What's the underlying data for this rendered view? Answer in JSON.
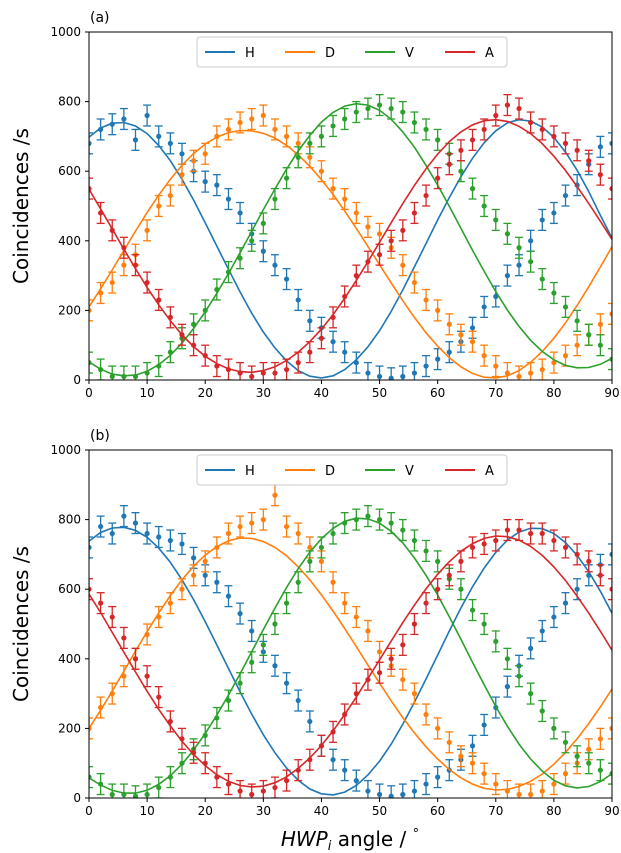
{
  "figure": {
    "xlabel_main": "HWP",
    "xlabel_sub": "i",
    "xlabel_rest": " angle / ",
    "xlabel_deg": "°"
  },
  "colors": {
    "H": "#1f77b4",
    "D": "#ff7f0e",
    "V": "#2ca02c",
    "A": "#d62728"
  },
  "chart_data": [
    {
      "type": "scatter",
      "panel_label": "(a)",
      "ylabel": "Coincidences /s",
      "xlim": [
        0,
        90
      ],
      "ylim": [
        0,
        1000
      ],
      "xticks": [
        0,
        10,
        20,
        30,
        40,
        50,
        60,
        70,
        80,
        90
      ],
      "yticks": [
        0,
        200,
        400,
        600,
        800,
        1000
      ],
      "legend_position": "top-center",
      "x": [
        0,
        2,
        4,
        6,
        8,
        10,
        12,
        14,
        16,
        18,
        20,
        22,
        24,
        26,
        28,
        30,
        32,
        34,
        36,
        38,
        40,
        42,
        44,
        46,
        48,
        50,
        52,
        54,
        56,
        58,
        60,
        62,
        64,
        66,
        68,
        70,
        72,
        74,
        76,
        78,
        80,
        82,
        84,
        86,
        88,
        90
      ],
      "series": [
        {
          "name": "H",
          "color": "#1f77b4",
          "y_err": 30,
          "y": [
            680,
            720,
            735,
            750,
            690,
            760,
            700,
            680,
            650,
            600,
            570,
            560,
            520,
            480,
            420,
            370,
            330,
            290,
            230,
            170,
            150,
            110,
            80,
            50,
            20,
            10,
            5,
            10,
            20,
            40,
            60,
            80,
            110,
            150,
            210,
            240,
            300,
            330,
            400,
            460,
            480,
            530,
            560,
            620,
            670,
            680
          ],
          "fit": [
            698,
            724,
            738,
            740,
            730,
            708,
            674,
            630,
            577,
            517,
            452,
            385,
            318,
            253,
            192,
            138,
            92,
            55,
            27,
            11,
            6,
            12,
            30,
            58,
            95,
            142,
            197,
            259,
            325,
            392,
            460,
            524,
            584,
            637,
            682,
            716,
            739,
            748,
            744,
            727,
            697,
            655,
            603,
            541,
            473,
            408
          ]
        },
        {
          "name": "D",
          "color": "#ff7f0e",
          "y_err": 30,
          "y": [
            200,
            250,
            280,
            330,
            360,
            430,
            500,
            530,
            590,
            630,
            650,
            700,
            720,
            740,
            750,
            760,
            720,
            700,
            680,
            640,
            600,
            550,
            520,
            480,
            440,
            420,
            380,
            330,
            280,
            230,
            200,
            160,
            130,
            110,
            70,
            40,
            20,
            10,
            20,
            30,
            50,
            70,
            100,
            130,
            160,
            190
          ],
          "fit": [
            210,
            262,
            316,
            372,
            428,
            481,
            531,
            577,
            617,
            651,
            678,
            698,
            711,
            717,
            716,
            709,
            695,
            674,
            647,
            614,
            576,
            533,
            486,
            436,
            384,
            331,
            279,
            228,
            180,
            136,
            97,
            64,
            38,
            19,
            8,
            6,
            12,
            27,
            51,
            82,
            120,
            164,
            214,
            268,
            325,
            383
          ]
        },
        {
          "name": "V",
          "color": "#2ca02c",
          "y_err": 30,
          "y": [
            50,
            30,
            10,
            10,
            10,
            20,
            40,
            80,
            120,
            160,
            200,
            260,
            310,
            350,
            400,
            450,
            520,
            580,
            640,
            680,
            700,
            730,
            750,
            770,
            780,
            790,
            780,
            770,
            740,
            720,
            690,
            650,
            600,
            550,
            500,
            460,
            420,
            380,
            340,
            290,
            250,
            210,
            170,
            130,
            100,
            60
          ],
          "fit": [
            52,
            31,
            17,
            12,
            14,
            25,
            44,
            71,
            106,
            148,
            196,
            249,
            306,
            366,
            427,
            489,
            549,
            606,
            658,
            703,
            741,
            769,
            787,
            794,
            790,
            775,
            749,
            713,
            669,
            617,
            560,
            499,
            436,
            373,
            312,
            254,
            201,
            154,
            114,
            82,
            58,
            42,
            35,
            36,
            45,
            62
          ]
        },
        {
          "name": "A",
          "color": "#d62728",
          "y_err": 30,
          "y": [
            550,
            480,
            430,
            380,
            330,
            280,
            230,
            180,
            130,
            100,
            70,
            40,
            30,
            20,
            10,
            20,
            20,
            30,
            50,
            80,
            120,
            180,
            240,
            300,
            340,
            360,
            400,
            430,
            480,
            530,
            580,
            620,
            660,
            690,
            720,
            760,
            790,
            780,
            740,
            720,
            700,
            680,
            660,
            630,
            590,
            550
          ],
          "fit": [
            548,
            492,
            434,
            376,
            320,
            266,
            216,
            170,
            130,
            96,
            68,
            47,
            32,
            24,
            22,
            27,
            38,
            56,
            80,
            110,
            146,
            188,
            235,
            286,
            340,
            396,
            452,
            507,
            559,
            607,
            649,
            685,
            713,
            733,
            745,
            748,
            743,
            729,
            708,
            679,
            643,
            602,
            556,
            507,
            456,
            404
          ]
        }
      ]
    },
    {
      "type": "scatter",
      "panel_label": "(b)",
      "ylabel": "Coincidences /s",
      "xlabel": "HWP_i angle / °",
      "xlim": [
        0,
        90
      ],
      "ylim": [
        0,
        1000
      ],
      "xticks": [
        0,
        10,
        20,
        30,
        40,
        50,
        60,
        70,
        80,
        90
      ],
      "yticks": [
        0,
        200,
        400,
        600,
        800,
        1000
      ],
      "legend_position": "top-center",
      "x": [
        0,
        2,
        4,
        6,
        8,
        10,
        12,
        14,
        16,
        18,
        20,
        22,
        24,
        26,
        28,
        30,
        32,
        34,
        36,
        38,
        40,
        42,
        44,
        46,
        48,
        50,
        52,
        54,
        56,
        58,
        60,
        62,
        64,
        66,
        68,
        70,
        72,
        74,
        76,
        78,
        80,
        82,
        84,
        86,
        88,
        90
      ],
      "series": [
        {
          "name": "H",
          "color": "#1f77b4",
          "y_err": 30,
          "y": [
            720,
            780,
            760,
            810,
            790,
            760,
            750,
            740,
            730,
            690,
            640,
            620,
            580,
            530,
            480,
            420,
            380,
            330,
            280,
            220,
            150,
            110,
            80,
            50,
            20,
            10,
            5,
            10,
            20,
            40,
            60,
            80,
            110,
            150,
            210,
            260,
            320,
            380,
            430,
            480,
            520,
            560,
            600,
            640,
            670,
            700
          ],
          "fit": [
            738,
            763,
            776,
            778,
            769,
            749,
            718,
            677,
            627,
            570,
            507,
            440,
            372,
            305,
            241,
            182,
            130,
            86,
            51,
            26,
            12,
            9,
            17,
            36,
            66,
            106,
            155,
            212,
            275,
            342,
            411,
            480,
            546,
            607,
            661,
            706,
            741,
            764,
            775,
            774,
            760,
            734,
            697,
            650,
            594,
            531
          ]
        },
        {
          "name": "D",
          "color": "#ff7f0e",
          "y_err": 30,
          "y": [
            200,
            260,
            300,
            350,
            400,
            470,
            520,
            560,
            600,
            640,
            680,
            720,
            760,
            780,
            790,
            800,
            870,
            780,
            760,
            720,
            680,
            620,
            560,
            520,
            480,
            420,
            380,
            340,
            300,
            240,
            200,
            160,
            120,
            100,
            70,
            40,
            20,
            10,
            10,
            20,
            40,
            70,
            100,
            140,
            170,
            200
          ],
          "fit": [
            200,
            252,
            307,
            364,
            422,
            478,
            532,
            582,
            627,
            666,
            698,
            722,
            739,
            747,
            746,
            737,
            720,
            696,
            664,
            627,
            584,
            537,
            487,
            435,
            382,
            330,
            279,
            231,
            187,
            147,
            112,
            82,
            58,
            40,
            28,
            23,
            25,
            33,
            48,
            69,
            97,
            131,
            170,
            214,
            262,
            313
          ]
        },
        {
          "name": "V",
          "color": "#2ca02c",
          "y_err": 30,
          "y": [
            60,
            40,
            10,
            10,
            5,
            10,
            30,
            60,
            100,
            140,
            180,
            230,
            280,
            330,
            390,
            440,
            500,
            560,
            620,
            680,
            720,
            760,
            790,
            800,
            810,
            800,
            790,
            770,
            740,
            710,
            680,
            630,
            600,
            540,
            500,
            450,
            400,
            350,
            300,
            250,
            200,
            160,
            120,
            100,
            80,
            70
          ],
          "fit": [
            58,
            37,
            22,
            14,
            14,
            22,
            39,
            64,
            97,
            138,
            185,
            238,
            296,
            357,
            420,
            484,
            546,
            605,
            659,
            706,
            745,
            775,
            795,
            804,
            802,
            790,
            766,
            733,
            690,
            640,
            583,
            521,
            456,
            390,
            325,
            263,
            206,
            155,
            112,
            77,
            51,
            35,
            29,
            33,
            47,
            70
          ]
        },
        {
          "name": "A",
          "color": "#d62728",
          "y_err": 30,
          "y": [
            600,
            560,
            520,
            460,
            400,
            350,
            290,
            220,
            170,
            130,
            100,
            60,
            40,
            20,
            10,
            20,
            30,
            50,
            80,
            110,
            150,
            190,
            240,
            300,
            340,
            360,
            400,
            440,
            500,
            560,
            600,
            640,
            680,
            720,
            730,
            740,
            770,
            770,
            760,
            760,
            740,
            720,
            700,
            680,
            640,
            600
          ],
          "fit": [
            586,
            533,
            476,
            419,
            362,
            307,
            255,
            207,
            163,
            125,
            93,
            67,
            48,
            36,
            32,
            34,
            44,
            61,
            85,
            115,
            151,
            193,
            240,
            290,
            343,
            397,
            451,
            504,
            554,
            601,
            643,
            679,
            709,
            731,
            746,
            753,
            751,
            741,
            723,
            697,
            664,
            625,
            580,
            531,
            479,
            425
          ]
        }
      ]
    }
  ]
}
